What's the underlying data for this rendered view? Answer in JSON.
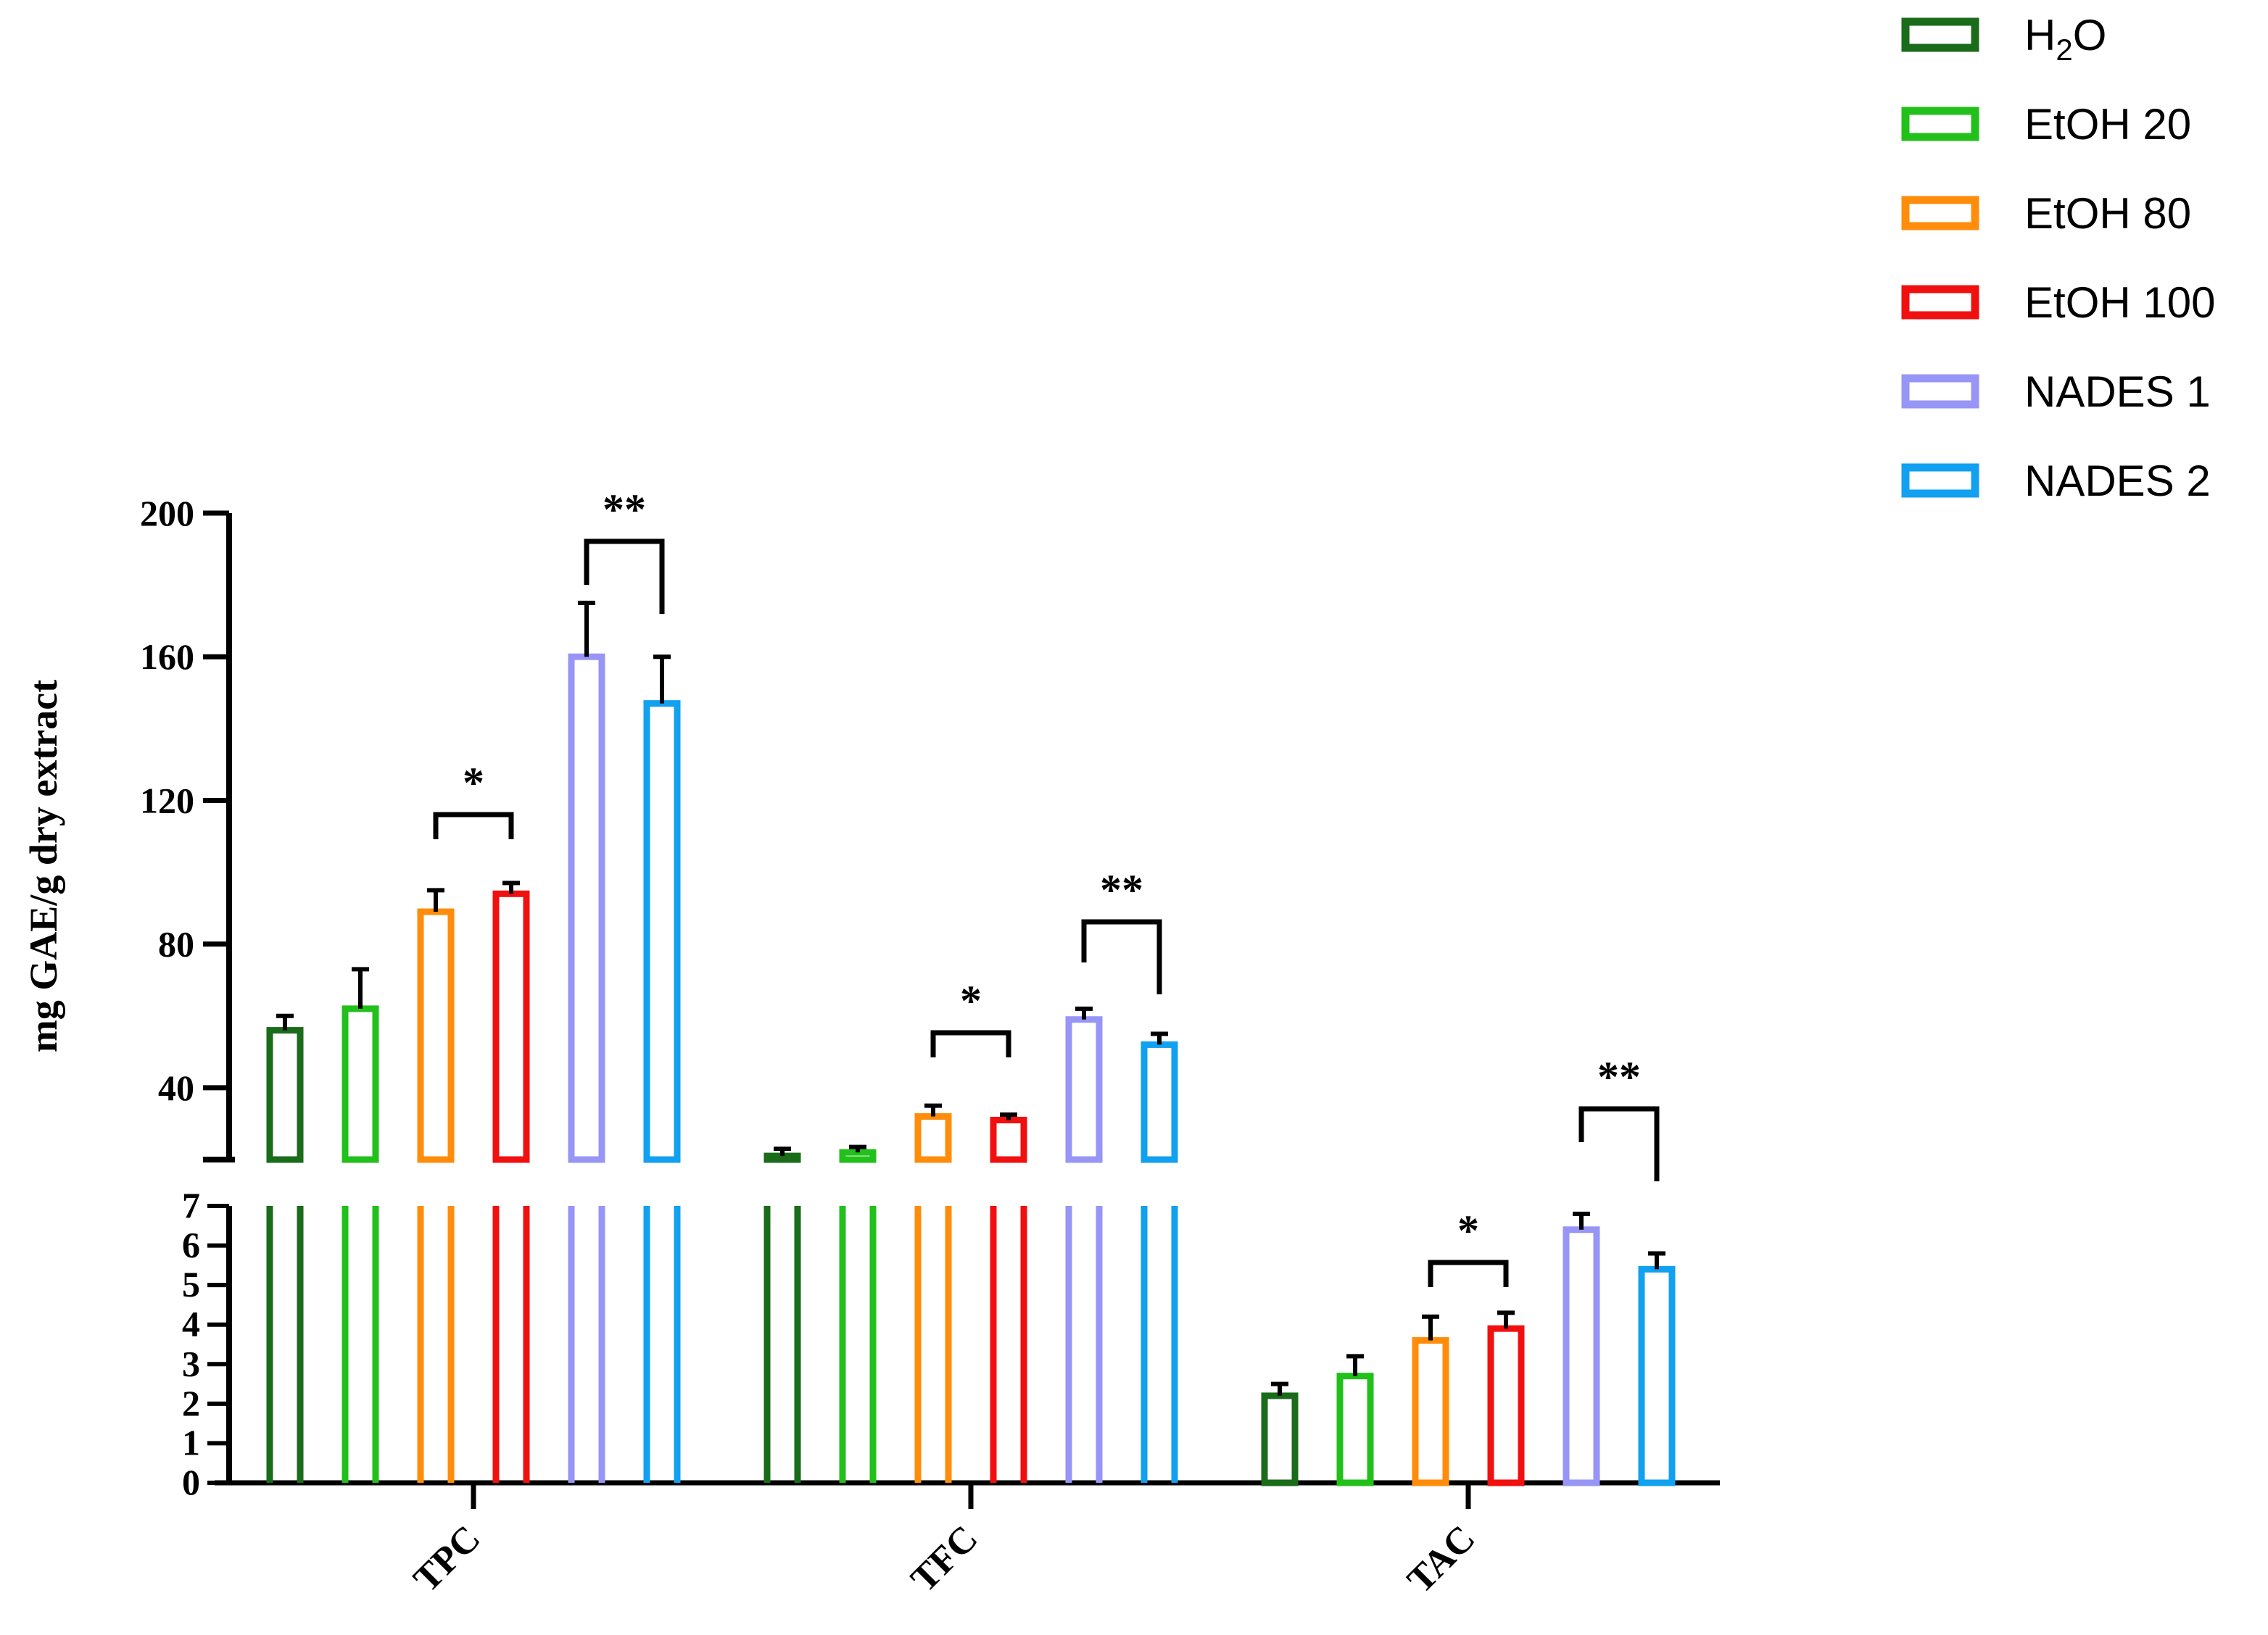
{
  "chart_data": {
    "type": "bar",
    "title": "",
    "xlabel": "",
    "ylabel": "mg GAE/g dry extract",
    "categories": [
      "TPC",
      "TFC",
      "TAC"
    ],
    "y_axis": {
      "broken": true,
      "upper_segment": {
        "range": [
          20,
          200
        ],
        "ticks": [
          "40",
          "80",
          "120",
          "160",
          "200"
        ]
      },
      "lower_segment": {
        "range": [
          0,
          7
        ],
        "ticks": [
          "0",
          "1",
          "2",
          "3",
          "4",
          "5",
          "6",
          "7"
        ]
      }
    },
    "series": [
      {
        "name": "H2O",
        "legend_main": "H",
        "legend_sub": "2",
        "legend_tail": "O",
        "color": "#1a6b1a",
        "values": [
          56,
          21,
          2.2
        ],
        "errors": [
          4,
          2,
          0.3
        ]
      },
      {
        "name": "EtOH 20",
        "legend_main": "EtOH 20",
        "color": "#22c01a",
        "values": [
          62,
          22,
          2.7
        ],
        "errors": [
          11,
          1.5,
          0.5
        ]
      },
      {
        "name": "EtOH 80",
        "legend_main": "EtOH 80",
        "color": "#ff8c0a",
        "values": [
          89,
          32,
          3.6
        ],
        "errors": [
          6,
          3,
          0.6
        ]
      },
      {
        "name": "EtOH 100",
        "legend_main": "EtOH 100",
        "color": "#f01010",
        "values": [
          94,
          31,
          3.9
        ],
        "errors": [
          3,
          1.5,
          0.4
        ]
      },
      {
        "name": "NADES 1",
        "legend_main": "NADES 1",
        "color": "#9795f5",
        "values": [
          160,
          59,
          6.4
        ],
        "errors": [
          15,
          3,
          0.4
        ]
      },
      {
        "name": "NADES 2",
        "legend_main": "NADES 2",
        "color": "#12a0f0",
        "values": [
          147,
          52,
          5.4
        ],
        "errors": [
          13,
          3,
          0.4
        ]
      }
    ],
    "significance": [
      {
        "category": "TPC",
        "between": [
          "EtOH 80",
          "EtOH 100"
        ],
        "label": "*"
      },
      {
        "category": "TPC",
        "between": [
          "NADES 1",
          "NADES 2"
        ],
        "label": "**"
      },
      {
        "category": "TFC",
        "between": [
          "EtOH 80",
          "EtOH 100"
        ],
        "label": "*"
      },
      {
        "category": "TFC",
        "between": [
          "NADES 1",
          "NADES 2"
        ],
        "label": "**"
      },
      {
        "category": "TAC",
        "between": [
          "EtOH 80",
          "EtOH 100"
        ],
        "label": "*"
      },
      {
        "category": "TAC",
        "between": [
          "NADES 1",
          "NADES 2"
        ],
        "label": "**"
      }
    ],
    "legend_position": "top-right",
    "grid": false
  }
}
